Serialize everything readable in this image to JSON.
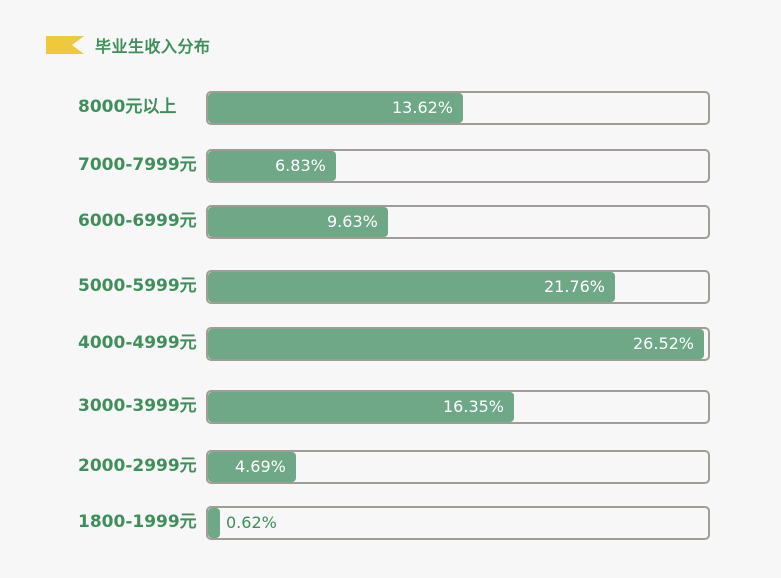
{
  "title": "毕业生收入分布",
  "colors": {
    "accent": "#3f8f5c",
    "bar": "#6ea887",
    "flag": "#f0c83c",
    "track_border": "#a09d94"
  },
  "chart_data": {
    "type": "bar",
    "orientation": "horizontal",
    "title": "毕业生收入分布",
    "categories": [
      "8000元以上",
      "7000-7999元",
      "6000-6999元",
      "5000-5999元",
      "4000-4999元",
      "3000-3999元",
      "2000-2999元",
      "1800-1999元"
    ],
    "values": [
      13.62,
      6.83,
      9.63,
      21.76,
      26.52,
      16.35,
      4.69,
      0.62
    ],
    "value_labels": [
      "13.62%",
      "6.83%",
      "9.63%",
      "21.76%",
      "26.52%",
      "16.35%",
      "4.69%",
      "0.62%"
    ],
    "xlim": [
      0,
      26.52
    ],
    "grid": false,
    "legend": "none"
  }
}
